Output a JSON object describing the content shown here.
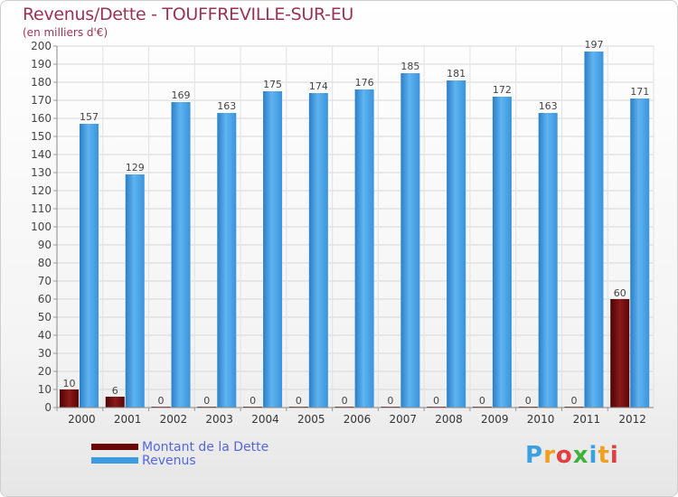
{
  "header": {
    "title": "Revenus/Dette - TOUFFREVILLE-SUR-EU",
    "subtitle": "(en milliers d'€)"
  },
  "legend": {
    "items": [
      {
        "label": "Montant de la Dette",
        "color": "#6a0808"
      },
      {
        "label": "Revenus",
        "color": "#3f9be0"
      }
    ]
  },
  "logo": {
    "text": "Proxiti",
    "letters": [
      {
        "ch": "P",
        "color": "#3aa0e0"
      },
      {
        "ch": "r",
        "color": "#f0a020"
      },
      {
        "ch": "o",
        "color": "#e04040"
      },
      {
        "ch": "x",
        "color": "#40b040"
      },
      {
        "ch": "i",
        "color": "#3aa0e0"
      },
      {
        "ch": "t",
        "color": "#f0a020"
      },
      {
        "ch": "i",
        "color": "#e04040"
      }
    ]
  },
  "chart_data": {
    "type": "bar",
    "title": "Revenus/Dette - TOUFFREVILLE-SUR-EU",
    "subtitle": "(en milliers d'€)",
    "categories": [
      "2000",
      "2001",
      "2002",
      "2003",
      "2004",
      "2005",
      "2006",
      "2007",
      "2008",
      "2009",
      "2010",
      "2011",
      "2012"
    ],
    "series": [
      {
        "name": "Montant de la Dette",
        "color": "#6a0808",
        "values": [
          10,
          6,
          0,
          0,
          0,
          0,
          0,
          0,
          0,
          0,
          0,
          0,
          60
        ]
      },
      {
        "name": "Revenus",
        "color": "#3f9be0",
        "values": [
          157,
          129,
          169,
          163,
          175,
          174,
          176,
          185,
          181,
          172,
          163,
          197,
          171
        ]
      }
    ],
    "ylim": [
      0,
      200
    ],
    "ytick_step": 10,
    "grid": true,
    "legend_position": "bottom-left"
  }
}
